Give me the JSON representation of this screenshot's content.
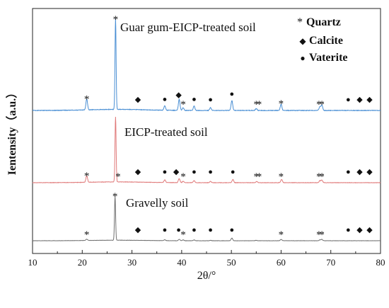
{
  "chart_data": {
    "type": "line",
    "xlabel": "2θ/°",
    "ylabel": "Ientensity（a.u.）",
    "xlim": [
      10,
      80
    ],
    "x_ticks": [
      10,
      20,
      30,
      40,
      50,
      60,
      70,
      80
    ],
    "legend": {
      "placement": "top-right",
      "entries": [
        {
          "symbol": "*",
          "label": "Quartz"
        },
        {
          "symbol": "◆",
          "label": "Calcite"
        },
        {
          "symbol": "●",
          "label": "Vaterite"
        }
      ]
    },
    "series": [
      {
        "name": "Guar gum-EICP-treated soil",
        "color": "#4a8fd4",
        "baseline": 0.47,
        "peaks": [
          [
            20.9,
            0.12,
            "*"
          ],
          [
            26.7,
            1.0,
            "*"
          ],
          [
            36.6,
            0.05,
            "●"
          ],
          [
            39.5,
            0.12,
            "◆"
          ],
          [
            40.3,
            0.03,
            "*"
          ],
          [
            42.5,
            0.05,
            "●"
          ],
          [
            45.8,
            0.03,
            "●"
          ],
          [
            50.1,
            0.11,
            "●"
          ],
          [
            55.0,
            0.02,
            "*"
          ],
          [
            60.0,
            0.07,
            "*"
          ],
          [
            67.8,
            0.04,
            "*"
          ],
          [
            68.2,
            0.06,
            "*"
          ]
        ]
      },
      {
        "name": "EICP-treated soil",
        "color": "#e07a7a",
        "baseline": 0.24,
        "peaks": [
          [
            20.9,
            0.1,
            "*"
          ],
          [
            26.7,
            1.0,
            "*"
          ],
          [
            36.6,
            0.04,
            "●"
          ],
          [
            39.5,
            0.06,
            "◆"
          ],
          [
            40.3,
            0.02,
            "*"
          ],
          [
            42.5,
            0.03,
            "●"
          ],
          [
            45.8,
            0.02,
            "●"
          ],
          [
            50.3,
            0.05,
            "●"
          ],
          [
            55.1,
            0.02,
            "*"
          ],
          [
            60.1,
            0.05,
            "*"
          ],
          [
            67.8,
            0.03,
            "*"
          ],
          [
            68.2,
            0.04,
            "*"
          ]
        ]
      },
      {
        "name": "Gravelly soil",
        "color": "#707070",
        "baseline": 0.0,
        "peaks": [
          [
            20.9,
            0.03,
            "*"
          ],
          [
            26.6,
            1.0,
            "*"
          ],
          [
            36.6,
            0.02,
            "●"
          ],
          [
            39.5,
            0.03,
            "◆"
          ],
          [
            40.3,
            0.02,
            "*"
          ],
          [
            42.5,
            0.02,
            "●"
          ],
          [
            45.8,
            0.01,
            "●"
          ],
          [
            50.1,
            0.06,
            "●"
          ],
          [
            55.0,
            0.01,
            "*"
          ],
          [
            60.0,
            0.03,
            "*"
          ],
          [
            67.8,
            0.02,
            "*"
          ],
          [
            68.2,
            0.03,
            "*"
          ]
        ]
      }
    ],
    "annotations": [
      {
        "series": 0,
        "marks": [
          [
            20.9,
            "*"
          ],
          [
            26.7,
            "*"
          ],
          [
            31.2,
            "◆"
          ],
          [
            36.6,
            "●"
          ],
          [
            39.4,
            "◆"
          ],
          [
            40.3,
            "*"
          ],
          [
            42.5,
            "●"
          ],
          [
            45.8,
            "●"
          ],
          [
            50.1,
            "●"
          ],
          [
            55.0,
            "*"
          ],
          [
            55.6,
            "*"
          ],
          [
            60.0,
            "*"
          ],
          [
            67.6,
            "*"
          ],
          [
            68.2,
            "*"
          ],
          [
            73.5,
            "●"
          ],
          [
            75.8,
            "◆"
          ],
          [
            77.8,
            "◆"
          ]
        ]
      },
      {
        "series": 1,
        "marks": [
          [
            20.9,
            "*"
          ],
          [
            27.2,
            "*"
          ],
          [
            31.2,
            "◆"
          ],
          [
            36.6,
            "●"
          ],
          [
            38.9,
            "◆"
          ],
          [
            40.3,
            "*"
          ],
          [
            42.5,
            "●"
          ],
          [
            45.8,
            "●"
          ],
          [
            50.3,
            "●"
          ],
          [
            55.0,
            "*"
          ],
          [
            55.6,
            "*"
          ],
          [
            60.0,
            "*"
          ],
          [
            67.6,
            "*"
          ],
          [
            68.2,
            "*"
          ],
          [
            73.5,
            "●"
          ],
          [
            75.8,
            "◆"
          ],
          [
            77.8,
            "◆"
          ]
        ]
      },
      {
        "series": 2,
        "marks": [
          [
            20.9,
            "*"
          ],
          [
            26.6,
            "*"
          ],
          [
            31.2,
            "◆"
          ],
          [
            36.6,
            "●"
          ],
          [
            39.4,
            "●"
          ],
          [
            40.3,
            "*"
          ],
          [
            42.5,
            "●"
          ],
          [
            45.8,
            "●"
          ],
          [
            50.1,
            "●"
          ],
          [
            60.0,
            "*"
          ],
          [
            67.6,
            "*"
          ],
          [
            68.2,
            "*"
          ],
          [
            73.5,
            "●"
          ],
          [
            75.8,
            "◆"
          ],
          [
            77.8,
            "◆"
          ]
        ]
      }
    ]
  }
}
